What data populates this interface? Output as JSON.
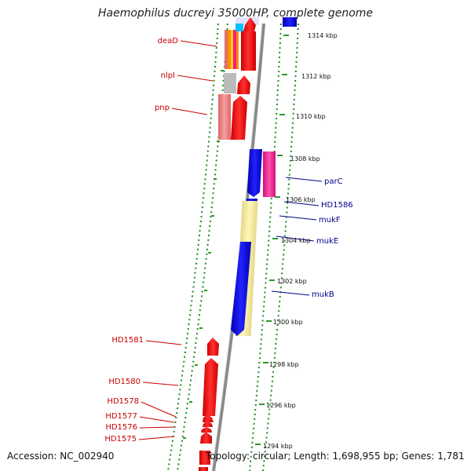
{
  "title": "Haemophilus ducreyi 35000HP, complete genome",
  "footer": {
    "accession": "Accession: NC_002940",
    "topology": "Topology: circular; Length: 1,698,955 bp; Genes: 1,781"
  },
  "kbp_ticks": [
    {
      "label": "1314 kbp",
      "position_kbp": 1314
    },
    {
      "label": "1312 kbp",
      "position_kbp": 1312
    },
    {
      "label": "1310 kbp",
      "position_kbp": 1310
    },
    {
      "label": "1308 kbp",
      "position_kbp": 1308
    },
    {
      "label": "1306 kbp",
      "position_kbp": 1306
    },
    {
      "label": "1304 kbp",
      "position_kbp": 1304
    },
    {
      "label": "1302 kbp",
      "position_kbp": 1302
    },
    {
      "label": "1300 kbp",
      "position_kbp": 1300
    },
    {
      "label": "1298 kbp",
      "position_kbp": 1298
    },
    {
      "label": "1296 kbp",
      "position_kbp": 1296
    },
    {
      "label": "1294 kbp",
      "position_kbp": 1294
    }
  ],
  "gene_labels_left": [
    "deaD",
    "nlpI",
    "pnp",
    "HD1581",
    "HD1580",
    "HD1578",
    "HD1577",
    "HD1576",
    "HD1575"
  ],
  "gene_labels_right": [
    "parC",
    "HD1586",
    "mukF",
    "mukE",
    "mukB"
  ],
  "colors": {
    "reverse_strand": "#ff0000",
    "forward_strand": "#0000ee",
    "pink": "#ff1493",
    "pale_yellow": "#f0e68c",
    "grey": "#bbbbbb",
    "salmon": "#f08080",
    "left_label": "#c80000",
    "right_label": "#00008b",
    "tick_dash": "#228b22",
    "backbone": "#888888"
  }
}
